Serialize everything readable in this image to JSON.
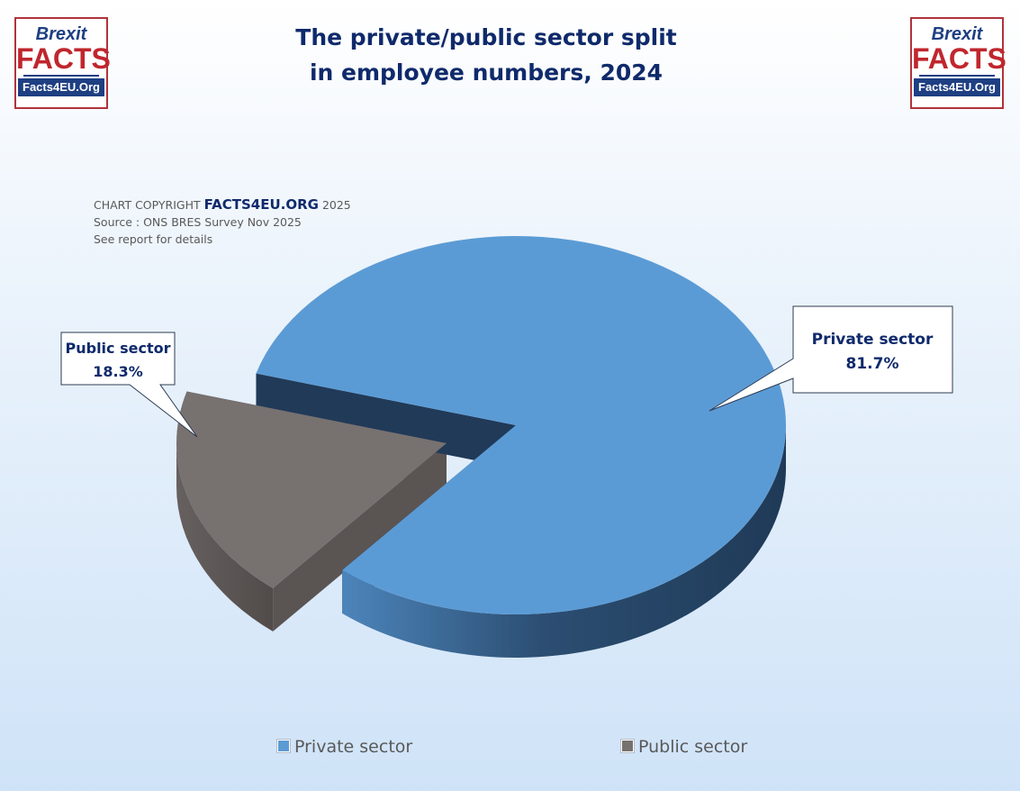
{
  "logos": {
    "brexit": "Brexit",
    "facts": "FACTS",
    "site": "Facts4EU.Org"
  },
  "title": {
    "line1": "The private/public sector split",
    "line2": "in employee numbers, 2024"
  },
  "copyright": {
    "prefix": "CHART COPYRIGHT",
    "brand": "FACTS4EU.ORG",
    "year": "2025",
    "source": "Source : ONS BRES Survey Nov 2025",
    "note": "See report for details"
  },
  "chart_data": {
    "type": "pie",
    "style": "3d-exploded",
    "categories": [
      "Private sector",
      "Public sector"
    ],
    "values": [
      81.7,
      18.3
    ],
    "data_labels": [
      "81.7%",
      "18.3%"
    ],
    "colors": [
      "#5b9bd5",
      "#777170"
    ],
    "legend_position": "bottom"
  }
}
